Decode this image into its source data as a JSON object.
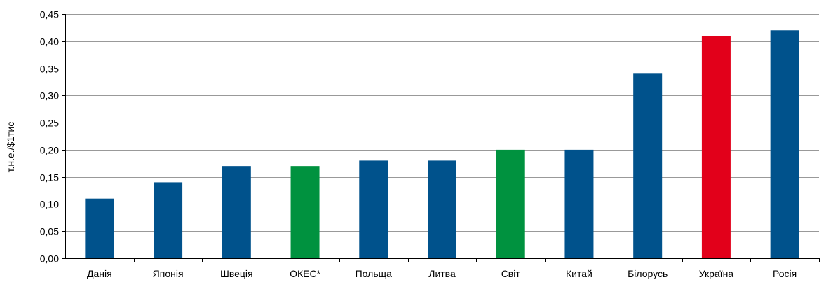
{
  "chart_data": {
    "type": "bar",
    "ylabel": "т.н.е./$1тис",
    "xlabel": "",
    "ylim": [
      0,
      0.45
    ],
    "ytick_step": 0.05,
    "ytick_labels": [
      "0,00",
      "0,05",
      "0,10",
      "0,15",
      "0,20",
      "0,25",
      "0,30",
      "0,35",
      "0,40",
      "0,45"
    ],
    "grid": true,
    "legend": "none",
    "categories": [
      "Данія",
      "Японія",
      "Швеція",
      "ОКЕС*",
      "Польща",
      "Литва",
      "Світ",
      "Китай",
      "Білорусь",
      "Україна",
      "Росія"
    ],
    "values": [
      0.11,
      0.14,
      0.17,
      0.17,
      0.18,
      0.18,
      0.2,
      0.2,
      0.34,
      0.41,
      0.42
    ],
    "bar_colors": [
      "#00528c",
      "#00528c",
      "#00528c",
      "#00923f",
      "#00528c",
      "#00528c",
      "#00923f",
      "#00528c",
      "#00528c",
      "#e2001a",
      "#00528c"
    ]
  },
  "colors": {
    "grid": "#999999",
    "axis": "#000000"
  }
}
